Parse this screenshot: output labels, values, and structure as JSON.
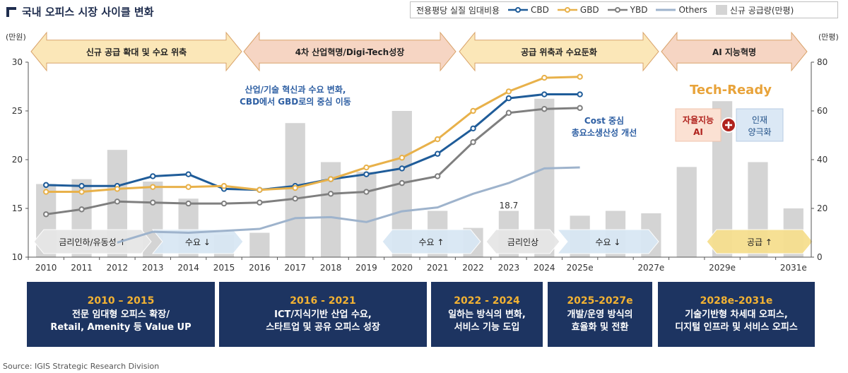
{
  "title": "국내 오피스 시장 사이클 변화",
  "legend": {
    "header": "전용평당 실질 임대비용",
    "items": [
      {
        "name": "CBD",
        "color": "#1f5c99",
        "kind": "line-marker"
      },
      {
        "name": "GBD",
        "color": "#e8b14a",
        "kind": "line-marker"
      },
      {
        "name": "YBD",
        "color": "#7f7f7f",
        "kind": "line-marker"
      },
      {
        "name": "Others",
        "color": "#9eb3cc",
        "kind": "line"
      },
      {
        "name": "신규 공급량(만평)",
        "color": "#d4d4d4",
        "kind": "bar"
      }
    ]
  },
  "chart_data": {
    "type": "bar+line",
    "left_axis_unit": "(만원)",
    "right_axis_unit": "(만평)",
    "ylim_left": [
      10,
      30
    ],
    "yticks_left": [
      10,
      15,
      20,
      25,
      30
    ],
    "ylim_right": [
      0,
      80
    ],
    "yticks_right": [
      0,
      20,
      40,
      60,
      80
    ],
    "x_labels": [
      "2010",
      "2011",
      "2012",
      "2013",
      "2014",
      "2015",
      "2016",
      "2017",
      "2018",
      "2019",
      "2020",
      "2021",
      "2022",
      "2023",
      "2024",
      "2025e",
      "",
      "2027e",
      "",
      "2029e",
      "",
      "2031e"
    ],
    "supply": [
      30,
      32,
      44,
      31,
      24,
      9,
      10,
      55,
      39,
      35,
      60,
      19,
      12,
      19,
      65,
      17,
      19,
      18,
      37,
      64,
      39,
      20
    ],
    "series": [
      {
        "name": "CBD",
        "color": "#1f5c99",
        "markers": true,
        "values": [
          17.4,
          17.3,
          17.3,
          18.3,
          18.5,
          17.0,
          16.9,
          17.3,
          18.0,
          18.5,
          19.1,
          20.6,
          23.2,
          26.3,
          26.7,
          26.7
        ]
      },
      {
        "name": "GBD",
        "color": "#e8b14a",
        "markers": true,
        "values": [
          16.7,
          16.7,
          17.0,
          17.2,
          17.2,
          17.3,
          16.9,
          17.1,
          18.0,
          19.2,
          20.2,
          22.1,
          25.0,
          27.0,
          28.4,
          28.5
        ]
      },
      {
        "name": "YBD",
        "color": "#7f7f7f",
        "markers": true,
        "values": [
          14.4,
          14.9,
          15.7,
          15.6,
          15.5,
          15.5,
          15.6,
          16.0,
          16.5,
          16.7,
          17.6,
          18.3,
          21.8,
          24.8,
          25.2,
          25.3
        ]
      },
      {
        "name": "Others",
        "color": "#9eb3cc",
        "markers": false,
        "values": [
          null,
          null,
          11.5,
          12.6,
          12.5,
          12.7,
          12.9,
          14.0,
          14.1,
          13.6,
          14.7,
          15.1,
          16.5,
          17.6,
          19.1,
          19.2
        ]
      }
    ],
    "annotations": [
      {
        "text": "18.7",
        "x_index": 13,
        "y": 15.2
      }
    ]
  },
  "phase_arrows": [
    {
      "label": "신규 공급 확대 및 수요 위축",
      "color": "#fbe7b8"
    },
    {
      "label": "4차 산업혁명/Digi-Tech성장",
      "color": "#f6d5c3"
    },
    {
      "label": "공급 위축과 수요둔화",
      "color": "#fbe7b8"
    },
    {
      "label": "AI 지능혁명",
      "color": "#f6d5c3"
    }
  ],
  "cycle_arrows": [
    {
      "label": "금리인하/유동성 ↑",
      "color": "#e6e6e6",
      "dir": "left"
    },
    {
      "label": "수요 ↓",
      "color": "#d9e7f4",
      "dir": "right"
    },
    {
      "label": "수요 ↑",
      "color": "#d9e7f4",
      "dir": "left"
    },
    {
      "label": "금리인상",
      "color": "#e6e6e6",
      "dir": "left"
    },
    {
      "label": "수요 ↓",
      "color": "#d9e7f4",
      "dir": "right"
    },
    {
      "label": "공급 ↑",
      "color": "#f6df8f",
      "dir": "both"
    }
  ],
  "text_notes": {
    "shift_line1": "산업/기술 혁신과 수요 변화,",
    "shift_line2": "CBD에서 GBD로의 중심 이동",
    "cost_line1": "Cost 중심",
    "cost_line2": "총요소생산성 개선",
    "tech_ready": "Tech-Ready",
    "ai_box_line1": "자율지능",
    "ai_box_line2": "AI",
    "talent_line1": "인재",
    "talent_line2": "양극화"
  },
  "eras": [
    {
      "years": "2010 – 2015",
      "line1": "전문 임대형 오피스 확장/",
      "line2": "Retail, Amenity 등 Value UP"
    },
    {
      "years": "2016 - 2021",
      "line1": "ICT/지식기반 산업 수요,",
      "line2": "스타트업 및 공유 오피스 성장"
    },
    {
      "years": "2022 - 2024",
      "line1": "일하는 방식의 변화,",
      "line2": "서비스 기능 도입"
    },
    {
      "years": "2025-2027e",
      "line1": "개발/운영 방식의",
      "line2": "효율화 및 전환"
    },
    {
      "years": "2028e-2031e",
      "line1": "기술기반형 차세대 오피스,",
      "line2": "디지털 인프라 및 서비스 오피스"
    }
  ],
  "source": "Source: IGIS Strategic Research Division"
}
